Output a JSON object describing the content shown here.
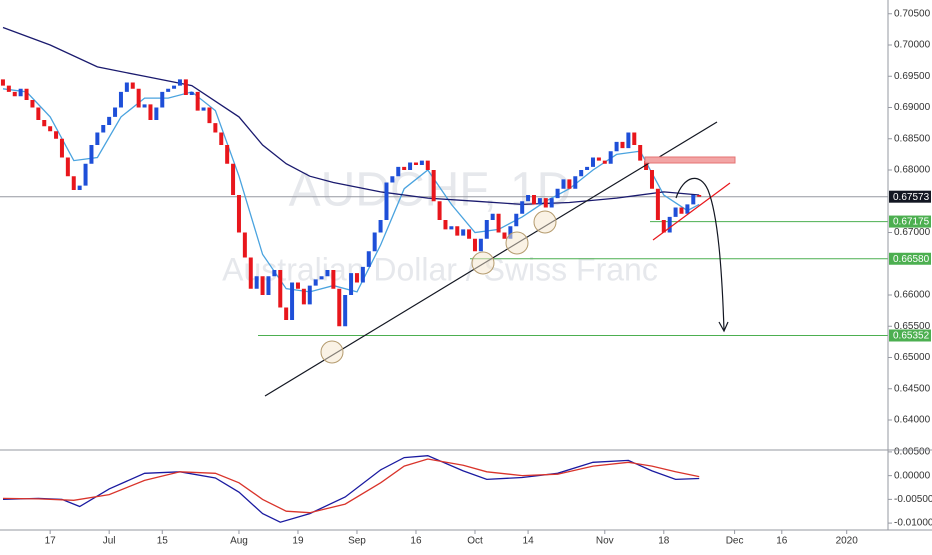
{
  "chart_data": {
    "type": "candlestick",
    "watermark_title": "AUDCHF, 1D",
    "watermark_subtitle": "Australian Dollar / Swiss Franc",
    "xlim": [
      -0.5,
      150
    ],
    "xticks": [
      {
        "value": 8,
        "label": "17"
      },
      {
        "value": 18,
        "label": "Jul"
      },
      {
        "value": 27,
        "label": "15"
      },
      {
        "value": 40,
        "label": "Aug"
      },
      {
        "value": 50,
        "label": "19"
      },
      {
        "value": 60,
        "label": "Sep"
      },
      {
        "value": 70,
        "label": "16"
      },
      {
        "value": 80,
        "label": "Oct"
      },
      {
        "value": 89,
        "label": "14"
      },
      {
        "value": 102,
        "label": "Nov"
      },
      {
        "value": 112,
        "label": "18"
      },
      {
        "value": 124,
        "label": "Dec"
      },
      {
        "value": 132,
        "label": "16"
      },
      {
        "value": 143,
        "label": "2020"
      }
    ],
    "ylim": [
      0.6352,
      0.7072
    ],
    "yticks": [
      {
        "value": 0.705,
        "label": "0.70500"
      },
      {
        "value": 0.7,
        "label": "0.70000"
      },
      {
        "value": 0.695,
        "label": "0.69500"
      },
      {
        "value": 0.69,
        "label": "0.69000"
      },
      {
        "value": 0.685,
        "label": "0.68500"
      },
      {
        "value": 0.68,
        "label": "0.68000"
      },
      {
        "value": 0.67,
        "label": "0.67000"
      },
      {
        "value": 0.66,
        "label": "0.66000"
      },
      {
        "value": 0.655,
        "label": "0.65500"
      },
      {
        "value": 0.65,
        "label": "0.65000"
      },
      {
        "value": 0.645,
        "label": "0.64500"
      },
      {
        "value": 0.64,
        "label": "0.64000"
      }
    ],
    "candles": {
      "up_color": "#1e4fd8",
      "down_color": "#e8161c",
      "open": [
        0.6945,
        0.6935,
        0.6925,
        0.6918,
        0.693,
        0.6912,
        0.69,
        0.688,
        0.687,
        0.6862,
        0.685,
        0.682,
        0.679,
        0.6768,
        0.6775,
        0.681,
        0.684,
        0.686,
        0.6872,
        0.6885,
        0.69,
        0.6925,
        0.694,
        0.693,
        0.69,
        0.6905,
        0.688,
        0.69,
        0.6925,
        0.693,
        0.6935,
        0.6945,
        0.692,
        0.6925,
        0.6895,
        0.69,
        0.6875,
        0.686,
        0.684,
        0.681,
        0.676,
        0.67,
        0.666,
        0.661,
        0.663,
        0.66,
        0.663,
        0.664,
        0.658,
        0.656,
        0.662,
        0.661,
        0.6585,
        0.6615,
        0.6625,
        0.663,
        0.664,
        0.661,
        0.655,
        0.66,
        0.6635,
        0.662,
        0.6645,
        0.667,
        0.67,
        0.672,
        0.678,
        0.679,
        0.6805,
        0.68,
        0.6812,
        0.6808,
        0.6815,
        0.68,
        0.675,
        0.672,
        0.6705,
        0.671,
        0.6695,
        0.6705,
        0.669,
        0.667,
        0.669,
        0.672,
        0.673,
        0.67,
        0.669,
        0.671,
        0.673,
        0.675,
        0.676,
        0.6745,
        0.6755,
        0.674,
        0.6755,
        0.677,
        0.6785,
        0.677,
        0.679,
        0.68,
        0.6805,
        0.682,
        0.6815,
        0.681,
        0.683,
        0.6845,
        0.6835,
        0.686,
        0.684,
        0.6815,
        0.68,
        0.677,
        0.672,
        0.67,
        0.6725,
        0.674,
        0.673,
        0.6745,
        0.676
      ],
      "close": [
        0.6935,
        0.6925,
        0.6918,
        0.693,
        0.6912,
        0.69,
        0.688,
        0.687,
        0.6862,
        0.685,
        0.682,
        0.679,
        0.6768,
        0.6775,
        0.681,
        0.684,
        0.686,
        0.6872,
        0.6885,
        0.69,
        0.6925,
        0.694,
        0.693,
        0.69,
        0.6905,
        0.688,
        0.69,
        0.6925,
        0.693,
        0.6935,
        0.6945,
        0.692,
        0.6925,
        0.6895,
        0.69,
        0.6875,
        0.686,
        0.684,
        0.681,
        0.676,
        0.67,
        0.666,
        0.661,
        0.663,
        0.66,
        0.663,
        0.664,
        0.658,
        0.656,
        0.662,
        0.661,
        0.6585,
        0.6615,
        0.6625,
        0.663,
        0.664,
        0.661,
        0.655,
        0.66,
        0.6635,
        0.662,
        0.6645,
        0.667,
        0.67,
        0.672,
        0.678,
        0.679,
        0.6805,
        0.68,
        0.6812,
        0.6808,
        0.6815,
        0.68,
        0.675,
        0.672,
        0.6705,
        0.671,
        0.6695,
        0.6705,
        0.669,
        0.667,
        0.669,
        0.672,
        0.673,
        0.67,
        0.669,
        0.671,
        0.673,
        0.675,
        0.676,
        0.6745,
        0.6755,
        0.674,
        0.6755,
        0.677,
        0.6785,
        0.677,
        0.679,
        0.68,
        0.6805,
        0.682,
        0.6815,
        0.681,
        0.683,
        0.6845,
        0.6835,
        0.686,
        0.684,
        0.6815,
        0.68,
        0.677,
        0.672,
        0.67,
        0.6725,
        0.674,
        0.673,
        0.6745,
        0.676,
        0.67573
      ]
    },
    "moving_averages": [
      {
        "color": "#4aa3df",
        "x": [
          0,
          4,
          8,
          12,
          16,
          20,
          24,
          28,
          32,
          36,
          40,
          44,
          48,
          52,
          56,
          60,
          64,
          68,
          72,
          76,
          80,
          84,
          88,
          92,
          96,
          100,
          104,
          108,
          112,
          116,
          118
        ],
        "values": [
          0.693,
          0.6925,
          0.6885,
          0.6815,
          0.682,
          0.6885,
          0.6915,
          0.6915,
          0.6925,
          0.6895,
          0.679,
          0.6665,
          0.661,
          0.6605,
          0.6615,
          0.6605,
          0.668,
          0.677,
          0.68,
          0.6745,
          0.67,
          0.6705,
          0.6725,
          0.675,
          0.677,
          0.68,
          0.6825,
          0.683,
          0.676,
          0.6735,
          0.6745
        ]
      },
      {
        "color": "#1a1a6e",
        "x": [
          0,
          8,
          16,
          24,
          32,
          40,
          44,
          48,
          52,
          56,
          64,
          72,
          80,
          88,
          96,
          104,
          112,
          118
        ],
        "values": [
          0.7028,
          0.7,
          0.6965,
          0.695,
          0.6935,
          0.6885,
          0.684,
          0.681,
          0.679,
          0.678,
          0.6765,
          0.6755,
          0.675,
          0.6745,
          0.6748,
          0.6755,
          0.6765,
          0.676
        ]
      }
    ],
    "price_levels": [
      {
        "value": 0.67573,
        "label": "0.67573",
        "color": "#131722"
      },
      {
        "value": 0.67175,
        "label": "0.67175",
        "color": "#4caf50"
      },
      {
        "value": 0.6658,
        "label": "0.66580",
        "color": "#4caf50"
      },
      {
        "value": 0.65352,
        "label": "0.65352",
        "color": "#4caf50"
      }
    ],
    "indicator": {
      "ylim": [
        -0.0104,
        0.0054
      ],
      "yticks": [
        {
          "value": 0.005,
          "label": "0.00500"
        },
        {
          "value": 0,
          "label": "0.00000"
        },
        {
          "value": -0.005,
          "label": "-0.00500"
        },
        {
          "value": -0.01,
          "label": "-0.01000"
        }
      ],
      "series": [
        {
          "color": "#1a1aa0",
          "x": [
            0,
            6,
            10,
            13,
            18,
            24,
            30,
            36,
            40,
            44,
            47,
            52,
            58,
            64,
            68,
            72,
            78,
            82,
            88,
            94,
            100,
            106,
            110,
            114,
            118
          ],
          "values": [
            -0.005,
            -0.0048,
            -0.005,
            -0.0065,
            -0.0028,
            0.0005,
            0.0008,
            -0.0005,
            -0.0035,
            -0.008,
            -0.0098,
            -0.008,
            -0.0045,
            0.0012,
            0.0038,
            0.0042,
            0.001,
            -0.0008,
            -0.0004,
            0.0005,
            0.0028,
            0.0032,
            0.001,
            -0.0008,
            -0.0006
          ]
        },
        {
          "color": "#d9342b",
          "x": [
            0,
            6,
            12,
            18,
            24,
            30,
            36,
            40,
            44,
            48,
            52,
            58,
            64,
            68,
            72,
            78,
            82,
            88,
            94,
            100,
            106,
            110,
            114,
            118
          ],
          "values": [
            -0.0048,
            -0.0049,
            -0.0052,
            -0.004,
            -0.001,
            0.0008,
            0.0005,
            -0.0015,
            -0.005,
            -0.0075,
            -0.0078,
            -0.006,
            -0.0015,
            0.002,
            0.0035,
            0.0022,
            0.0008,
            0.0,
            0.0003,
            0.002,
            0.0028,
            0.002,
            0.0008,
            -0.0002
          ]
        }
      ]
    }
  }
}
